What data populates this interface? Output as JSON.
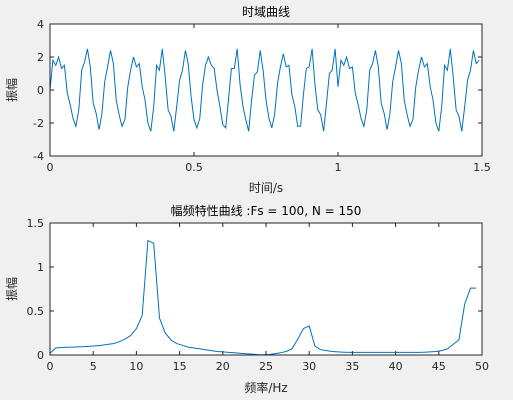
{
  "colors": {
    "figure_bg": "#f0f0f0",
    "axes_bg": "#ffffff",
    "axis": "#262626",
    "line": "#0072bd"
  },
  "chart_data": [
    {
      "type": "line",
      "title": "时域曲线",
      "xlabel": "时间/s",
      "ylabel": "振幅",
      "xlim": [
        0,
        1.5
      ],
      "ylim": [
        -4,
        4
      ],
      "xticks": [
        0,
        0.5,
        1,
        1.5
      ],
      "xtick_labels": [
        "0",
        "0.5",
        "1",
        "1.5"
      ],
      "yticks": [
        -4,
        -2,
        0,
        2,
        4
      ],
      "ytick_labels": [
        "-4",
        "-2",
        "0",
        "2",
        "4"
      ],
      "grid": false,
      "legend": "none",
      "series": [
        {
          "x": [
            0,
            0.01,
            0.02,
            0.03,
            0.04,
            0.05,
            0.06,
            0.07,
            0.08,
            0.09,
            0.1,
            0.11,
            0.12,
            0.13,
            0.14,
            0.15,
            0.16,
            0.17,
            0.18,
            0.19,
            0.2,
            0.21,
            0.22,
            0.23,
            0.24,
            0.25,
            0.26,
            0.27,
            0.28,
            0.29,
            0.3,
            0.31,
            0.32,
            0.33,
            0.34,
            0.35,
            0.36,
            0.37,
            0.38,
            0.39,
            0.4,
            0.41,
            0.42,
            0.43,
            0.44,
            0.45,
            0.46,
            0.47,
            0.48,
            0.49,
            0.5,
            0.51,
            0.52,
            0.53,
            0.54,
            0.55,
            0.56,
            0.57,
            0.58,
            0.59,
            0.6,
            0.61,
            0.62,
            0.63,
            0.64,
            0.65,
            0.66,
            0.67,
            0.68,
            0.69,
            0.7,
            0.71,
            0.72,
            0.73,
            0.74,
            0.75,
            0.76,
            0.77,
            0.78,
            0.79,
            0.8,
            0.81,
            0.82,
            0.83,
            0.84,
            0.85,
            0.86,
            0.87,
            0.88,
            0.89,
            0.9,
            0.91,
            0.92,
            0.93,
            0.94,
            0.95,
            0.96,
            0.97,
            0.98,
            0.99,
            1,
            1.01,
            1.02,
            1.03,
            1.04,
            1.05,
            1.06,
            1.07,
            1.08,
            1.09,
            1.1,
            1.11,
            1.12,
            1.13,
            1.14,
            1.15,
            1.16,
            1.17,
            1.18,
            1.19,
            1.2,
            1.21,
            1.22,
            1.23,
            1.24,
            1.25,
            1.26,
            1.27,
            1.28,
            1.29,
            1.3,
            1.31,
            1.32,
            1.33,
            1.34,
            1.35,
            1.36,
            1.37,
            1.38,
            1.39,
            1.4,
            1.41,
            1.42,
            1.43,
            1.44,
            1.45,
            1.46,
            1.47,
            1.48,
            1.49
          ],
          "y": [
            0,
            1.8,
            1.5,
            2.0,
            1.3,
            1.5,
            -0.2,
            -0.9,
            -1.7,
            -2.2,
            -1.2,
            1.2,
            1.7,
            2.5,
            1.4,
            -0.8,
            -1.4,
            -2.4,
            -1.5,
            0.5,
            1.4,
            2.4,
            1.6,
            -0.6,
            -1.5,
            -2.2,
            -1.8,
            0.2,
            1.2,
            2.0,
            1.4,
            1.6,
            0.2,
            -0.6,
            -2.0,
            -2.5,
            -1.0,
            1.5,
            1.2,
            2.5,
            0.8,
            -1.2,
            -1.6,
            -2.5,
            -1.0,
            0.6,
            1.2,
            2.4,
            1.6,
            -0.4,
            -1.8,
            -2.3,
            -1.7,
            0.3,
            1.5,
            2.0,
            1.5,
            1.3,
            0.0,
            -1.0,
            -2.1,
            -2.3,
            -0.5,
            1.3,
            1.3,
            2.5,
            0.3,
            -1.0,
            -1.8,
            -2.5,
            -0.6,
            0.9,
            1.1,
            2.4,
            1.2,
            -0.6,
            -1.7,
            -2.3,
            -1.5,
            0.4,
            1.4,
            2.2,
            1.4,
            1.5,
            -0.3,
            -1.0,
            -2.2,
            -2.2,
            -0.3,
            1.3,
            1.4,
            2.5,
            0.3,
            -1.2,
            -1.5,
            -2.5,
            -0.8,
            1.0,
            1.2,
            2.5,
            0.2,
            1.8,
            1.5,
            2.0,
            1.3,
            1.4,
            -0.2,
            -0.9,
            -1.7,
            -2.2,
            -1.2,
            1.2,
            1.6,
            2.4,
            1.4,
            -0.8,
            -1.4,
            -2.4,
            -1.5,
            0.5,
            1.4,
            2.4,
            1.6,
            -0.6,
            -1.5,
            -2.2,
            -1.8,
            0.2,
            1.2,
            2.0,
            1.4,
            1.6,
            0.2,
            -0.6,
            -2.0,
            -2.5,
            -1.0,
            1.5,
            1.2,
            2.5,
            0.8,
            -1.2,
            -1.6,
            -2.5,
            -1.0,
            0.6,
            1.2,
            2.4,
            1.6,
            1.8
          ]
        }
      ]
    },
    {
      "type": "line",
      "title": "幅频特性曲线 :Fs = 100, N = 150",
      "xlabel": "频率/Hz",
      "ylabel": "振幅",
      "xlim": [
        0,
        50
      ],
      "ylim": [
        0,
        1.5
      ],
      "xticks": [
        0,
        5,
        10,
        15,
        20,
        25,
        30,
        35,
        40,
        45,
        50
      ],
      "xtick_labels": [
        "0",
        "5",
        "10",
        "15",
        "20",
        "25",
        "30",
        "35",
        "40",
        "45",
        "50"
      ],
      "yticks": [
        0,
        0.5,
        1,
        1.5
      ],
      "ytick_labels": [
        "0",
        "0.5",
        "1",
        "1.5"
      ],
      "grid": false,
      "legend": "none",
      "series": [
        {
          "x": [
            0,
            0.67,
            1.33,
            2.0,
            2.67,
            3.33,
            4.0,
            4.67,
            5.33,
            6.0,
            6.67,
            7.33,
            8.0,
            8.67,
            9.33,
            10.0,
            10.67,
            11.33,
            12.0,
            12.67,
            13.33,
            14.0,
            14.67,
            15.33,
            16.0,
            16.67,
            17.33,
            18.0,
            18.67,
            19.33,
            20.0,
            20.67,
            21.33,
            22.0,
            22.67,
            23.33,
            24.0,
            24.67,
            25.33,
            26.0,
            26.67,
            27.33,
            28.0,
            28.67,
            29.33,
            30.0,
            30.67,
            31.33,
            32.0,
            32.67,
            33.33,
            34.0,
            34.67,
            35.33,
            36.0,
            36.67,
            37.33,
            38.0,
            38.67,
            39.33,
            40.0,
            40.67,
            41.33,
            42.0,
            42.67,
            43.33,
            44.0,
            44.67,
            45.33,
            46.0,
            46.67,
            47.33,
            48.0,
            48.67,
            49.33
          ],
          "y": [
            0.02,
            0.08,
            0.085,
            0.087,
            0.09,
            0.092,
            0.095,
            0.1,
            0.105,
            0.11,
            0.12,
            0.13,
            0.15,
            0.18,
            0.22,
            0.3,
            0.45,
            1.3,
            1.27,
            0.42,
            0.25,
            0.17,
            0.13,
            0.11,
            0.09,
            0.08,
            0.07,
            0.06,
            0.05,
            0.04,
            0.035,
            0.03,
            0.025,
            0.02,
            0.015,
            0.01,
            0.005,
            0.003,
            0.006,
            0.015,
            0.025,
            0.04,
            0.07,
            0.18,
            0.3,
            0.33,
            0.1,
            0.06,
            0.05,
            0.04,
            0.035,
            0.032,
            0.03,
            0.03,
            0.03,
            0.03,
            0.03,
            0.03,
            0.03,
            0.03,
            0.03,
            0.03,
            0.03,
            0.03,
            0.03,
            0.032,
            0.035,
            0.04,
            0.05,
            0.07,
            0.12,
            0.17,
            0.58,
            0.76,
            0.76
          ]
        }
      ]
    }
  ]
}
